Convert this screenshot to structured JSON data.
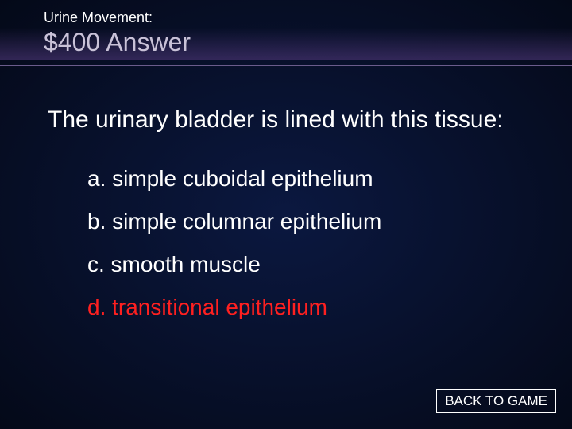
{
  "header": {
    "category": "Urine Movement:",
    "value_answer": "$400 Answer"
  },
  "question": "The urinary bladder is lined with this tissue:",
  "options": [
    {
      "text": "a. simple cuboidal epithelium",
      "correct": false
    },
    {
      "text": "b. simple columnar epithelium",
      "correct": false
    },
    {
      "text": "c. smooth muscle",
      "correct": false
    },
    {
      "text": "d. transitional epithelium",
      "correct": true
    }
  ],
  "button": {
    "back_label": "BACK TO GAME"
  },
  "colors": {
    "background_center": "#0b1840",
    "background_edge": "#040918",
    "header_border": "#6b5c8c",
    "value_text": "#c9c2d8",
    "body_text": "#ffffff",
    "correct_text": "#ff2020",
    "button_border": "#ffffff"
  },
  "typography": {
    "category_fontsize": 18,
    "value_fontsize": 32,
    "question_fontsize": 30,
    "option_fontsize": 28,
    "button_fontsize": 17,
    "font_family": "Arial"
  }
}
